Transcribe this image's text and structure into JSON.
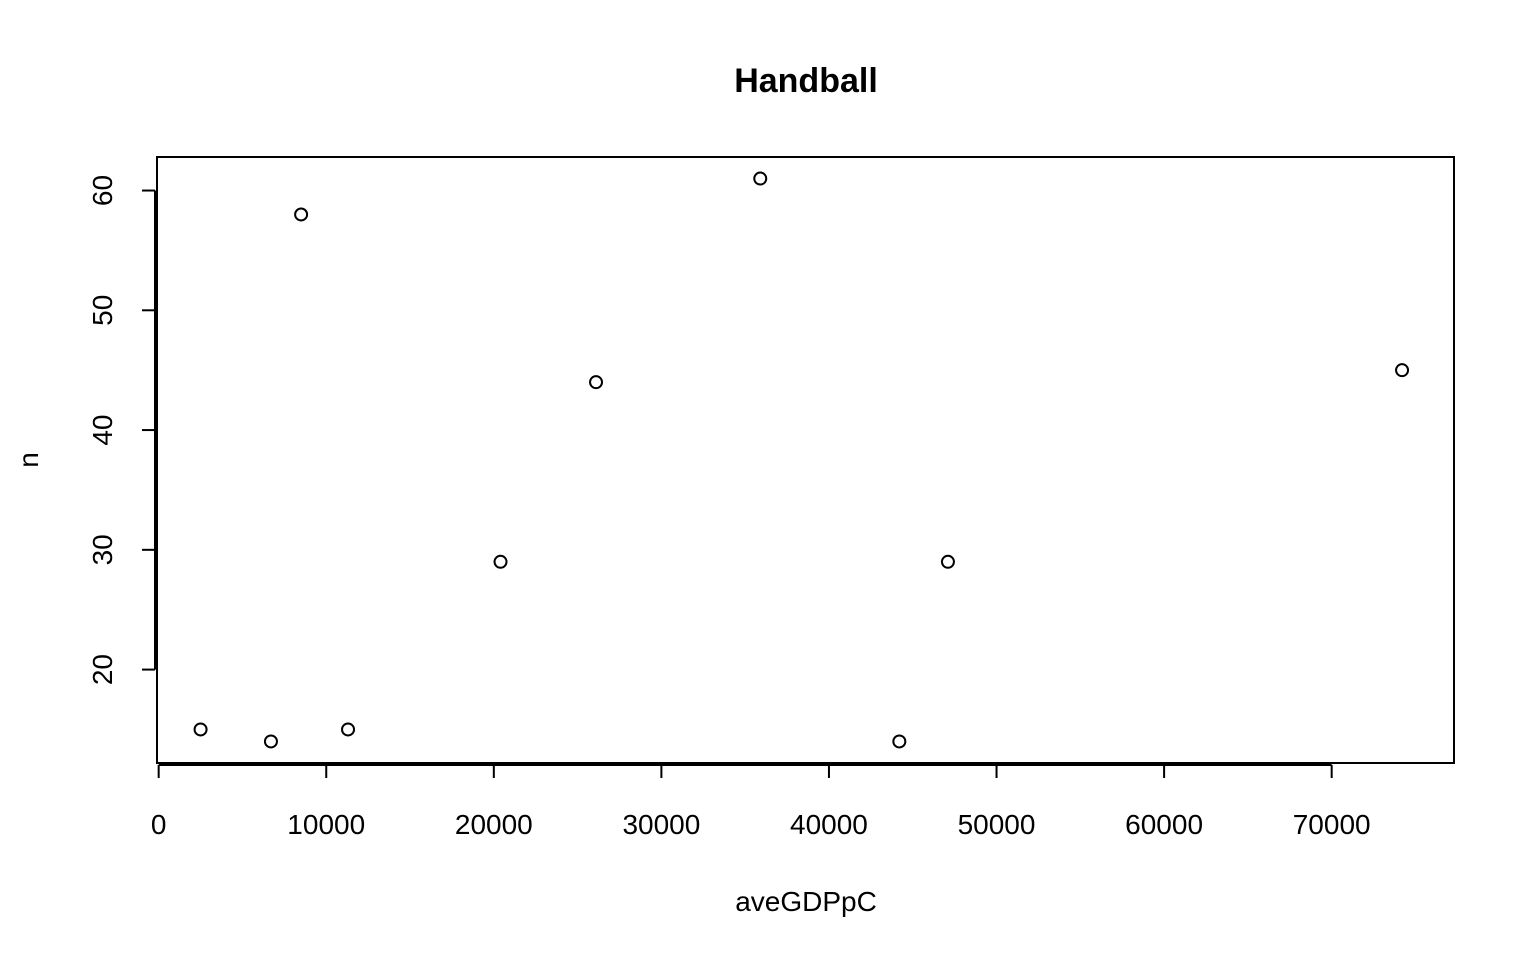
{
  "chart_data": {
    "type": "scatter",
    "title": "Handball",
    "xlabel": "aveGDPpC",
    "ylabel": "n",
    "xlim": [
      -100,
      77300
    ],
    "ylim": [
      12.2,
      62.8
    ],
    "x_ticks": [
      0,
      10000,
      20000,
      30000,
      40000,
      50000,
      60000,
      70000
    ],
    "y_ticks": [
      20,
      30,
      40,
      50,
      60
    ],
    "x_tick_labels": [
      "0",
      "10000",
      "20000",
      "30000",
      "40000",
      "50000",
      "60000",
      "70000"
    ],
    "y_tick_labels": [
      "20",
      "30",
      "40",
      "50",
      "60"
    ],
    "grid": false,
    "legend": "none",
    "marker": "open-circle",
    "points": [
      {
        "x": 2500,
        "y": 15
      },
      {
        "x": 6700,
        "y": 14
      },
      {
        "x": 8500,
        "y": 58
      },
      {
        "x": 11300,
        "y": 15
      },
      {
        "x": 20400,
        "y": 29
      },
      {
        "x": 26100,
        "y": 44
      },
      {
        "x": 35900,
        "y": 61
      },
      {
        "x": 44200,
        "y": 14
      },
      {
        "x": 47100,
        "y": 29
      },
      {
        "x": 74200,
        "y": 45
      }
    ]
  }
}
